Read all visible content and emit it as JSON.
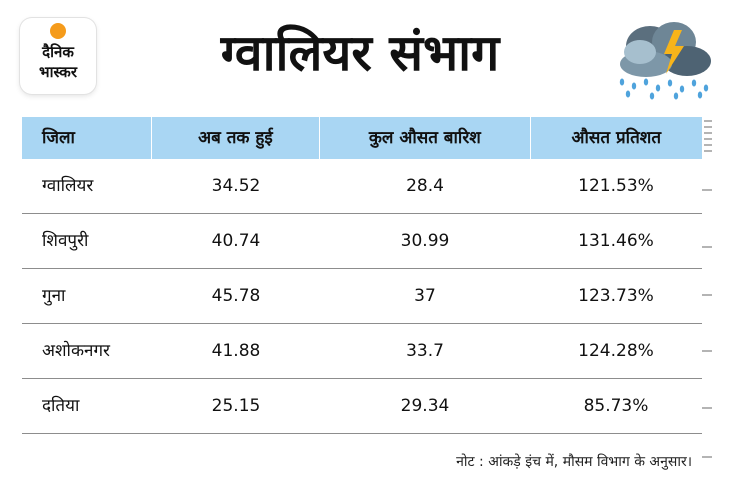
{
  "logo": {
    "line1": "दैनिक",
    "line2": "भास्कर"
  },
  "title": "ग्वालियर संभाग",
  "weather_icon": "rain-cloud-lightning-icon",
  "colors": {
    "header_bg": "#a9d6f3",
    "logo_dot": "#f59b1b",
    "row_border": "#8d8d8d"
  },
  "table": {
    "columns": [
      "जिला",
      "अब तक हुई",
      "कुल औसत बारिश",
      "औसत प्रतिशत"
    ],
    "rows": [
      [
        "ग्वालियर",
        "34.52",
        "28.4",
        "121.53%"
      ],
      [
        "शिवपुरी",
        "40.74",
        "30.99",
        "131.46%"
      ],
      [
        "गुना",
        "45.78",
        "37",
        "123.73%"
      ],
      [
        "अशोकनगर",
        "41.88",
        "33.7",
        "124.28%"
      ],
      [
        "दतिया",
        "25.15",
        "29.34",
        "85.73%"
      ]
    ]
  },
  "note": "नोट : आंकड़े इंच में, मौसम विभाग के अनुसार।"
}
